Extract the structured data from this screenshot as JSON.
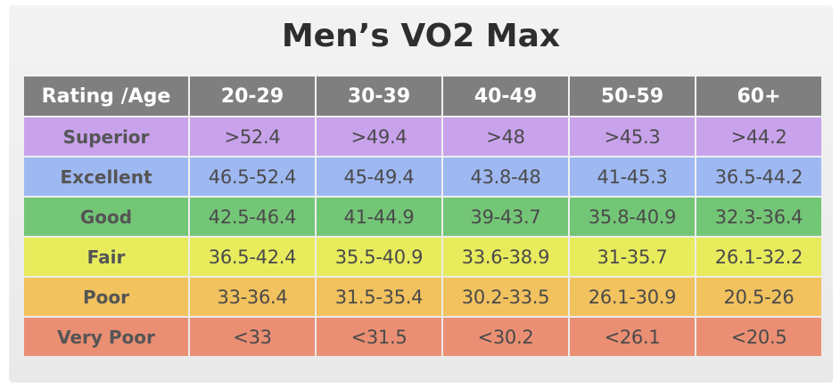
{
  "title": "Men’s VO2 Max",
  "table": {
    "corner_header": "Rating /Age",
    "age_groups": [
      "20-29",
      "30-39",
      "40-49",
      "50-59",
      "60+"
    ],
    "rows": [
      {
        "rating": "Superior",
        "color": "#c9a2ec",
        "values": [
          ">52.4",
          ">49.4",
          ">48",
          ">45.3",
          ">44.2"
        ]
      },
      {
        "rating": "Excellent",
        "color": "#9eb8f2",
        "values": [
          "46.5-52.4",
          "45-49.4",
          "43.8-48",
          "41-45.3",
          "36.5-44.2"
        ]
      },
      {
        "rating": "Good",
        "color": "#74c677",
        "values": [
          "42.5-46.4",
          "41-44.9",
          "39-43.7",
          "35.8-40.9",
          "32.3-36.4"
        ]
      },
      {
        "rating": "Fair",
        "color": "#e8ec5c",
        "values": [
          "36.5-42.4",
          "35.5-40.9",
          "33.6-38.9",
          "31-35.7",
          "26.1-32.2"
        ]
      },
      {
        "rating": "Poor",
        "color": "#f2c25e",
        "values": [
          "33-36.4",
          "31.5-35.4",
          "30.2-33.5",
          "26.1-30.9",
          "20.5-26"
        ]
      },
      {
        "rating": "Very Poor",
        "color": "#ea8f74",
        "values": [
          "<33",
          "<31.5",
          "<30.2",
          "<26.1",
          "<20.5"
        ]
      }
    ]
  }
}
